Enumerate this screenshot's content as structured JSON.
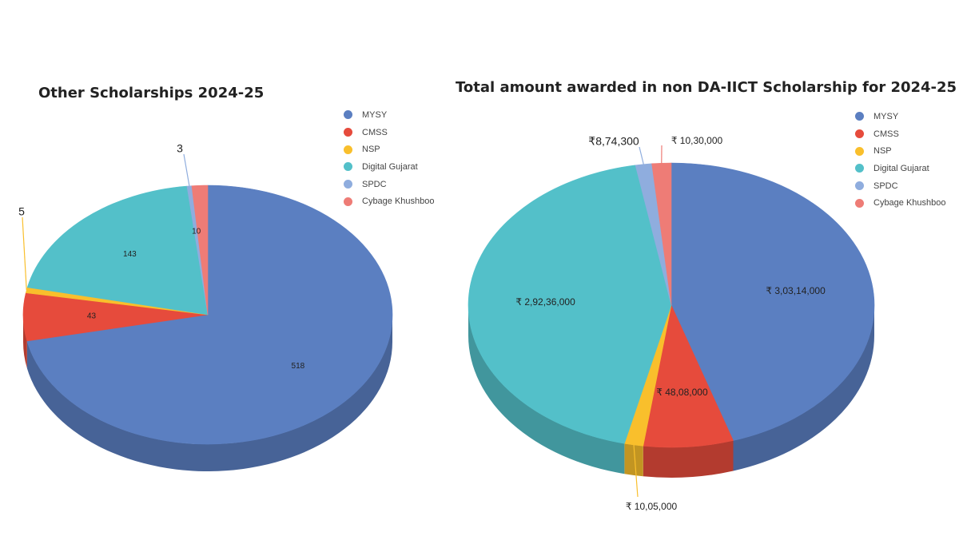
{
  "chart_data": [
    {
      "type": "pie",
      "title": "Other Scholarships 2024-25",
      "legend_position": "top-right",
      "slices": [
        {
          "label": "MYSY",
          "value": 518,
          "color": "#5b7fc1",
          "data_label": "518"
        },
        {
          "label": "CMSS",
          "value": 43,
          "color": "#e64b3c",
          "data_label": "43"
        },
        {
          "label": "NSP",
          "value": 5,
          "color": "#f9bf2c",
          "data_label": "5"
        },
        {
          "label": "Digital Gujarat",
          "value": 143,
          "color": "#53c0c9",
          "data_label": "143"
        },
        {
          "label": "SPDC",
          "value": 3,
          "color": "#8fadde",
          "data_label": "3"
        },
        {
          "label": "Cybage Khushboo",
          "value": 10,
          "color": "#ee7c76",
          "data_label": "10"
        }
      ]
    },
    {
      "type": "pie",
      "title": "Total amount awarded in non DA-IICT Scholarship for 2024-25",
      "legend_position": "top-right",
      "slices": [
        {
          "label": "MYSY",
          "value": 30314000,
          "color": "#5b7fc1",
          "data_label": "₹ 3,03,14,000"
        },
        {
          "label": "CMSS",
          "value": 4808000,
          "color": "#e64b3c",
          "data_label": "₹ 48,08,000"
        },
        {
          "label": "NSP",
          "value": 1005000,
          "color": "#f9bf2c",
          "data_label": "₹ 10,05,000"
        },
        {
          "label": "Digital Gujarat",
          "value": 29236000,
          "color": "#53c0c9",
          "data_label": "₹ 2,92,36,000"
        },
        {
          "label": "SPDC",
          "value": 874300,
          "color": "#8fadde",
          "data_label": "₹8,74,300"
        },
        {
          "label": "Cybage Khushboo",
          "value": 1030000,
          "color": "#ee7c76",
          "data_label": "₹ 10,30,000"
        }
      ]
    }
  ]
}
